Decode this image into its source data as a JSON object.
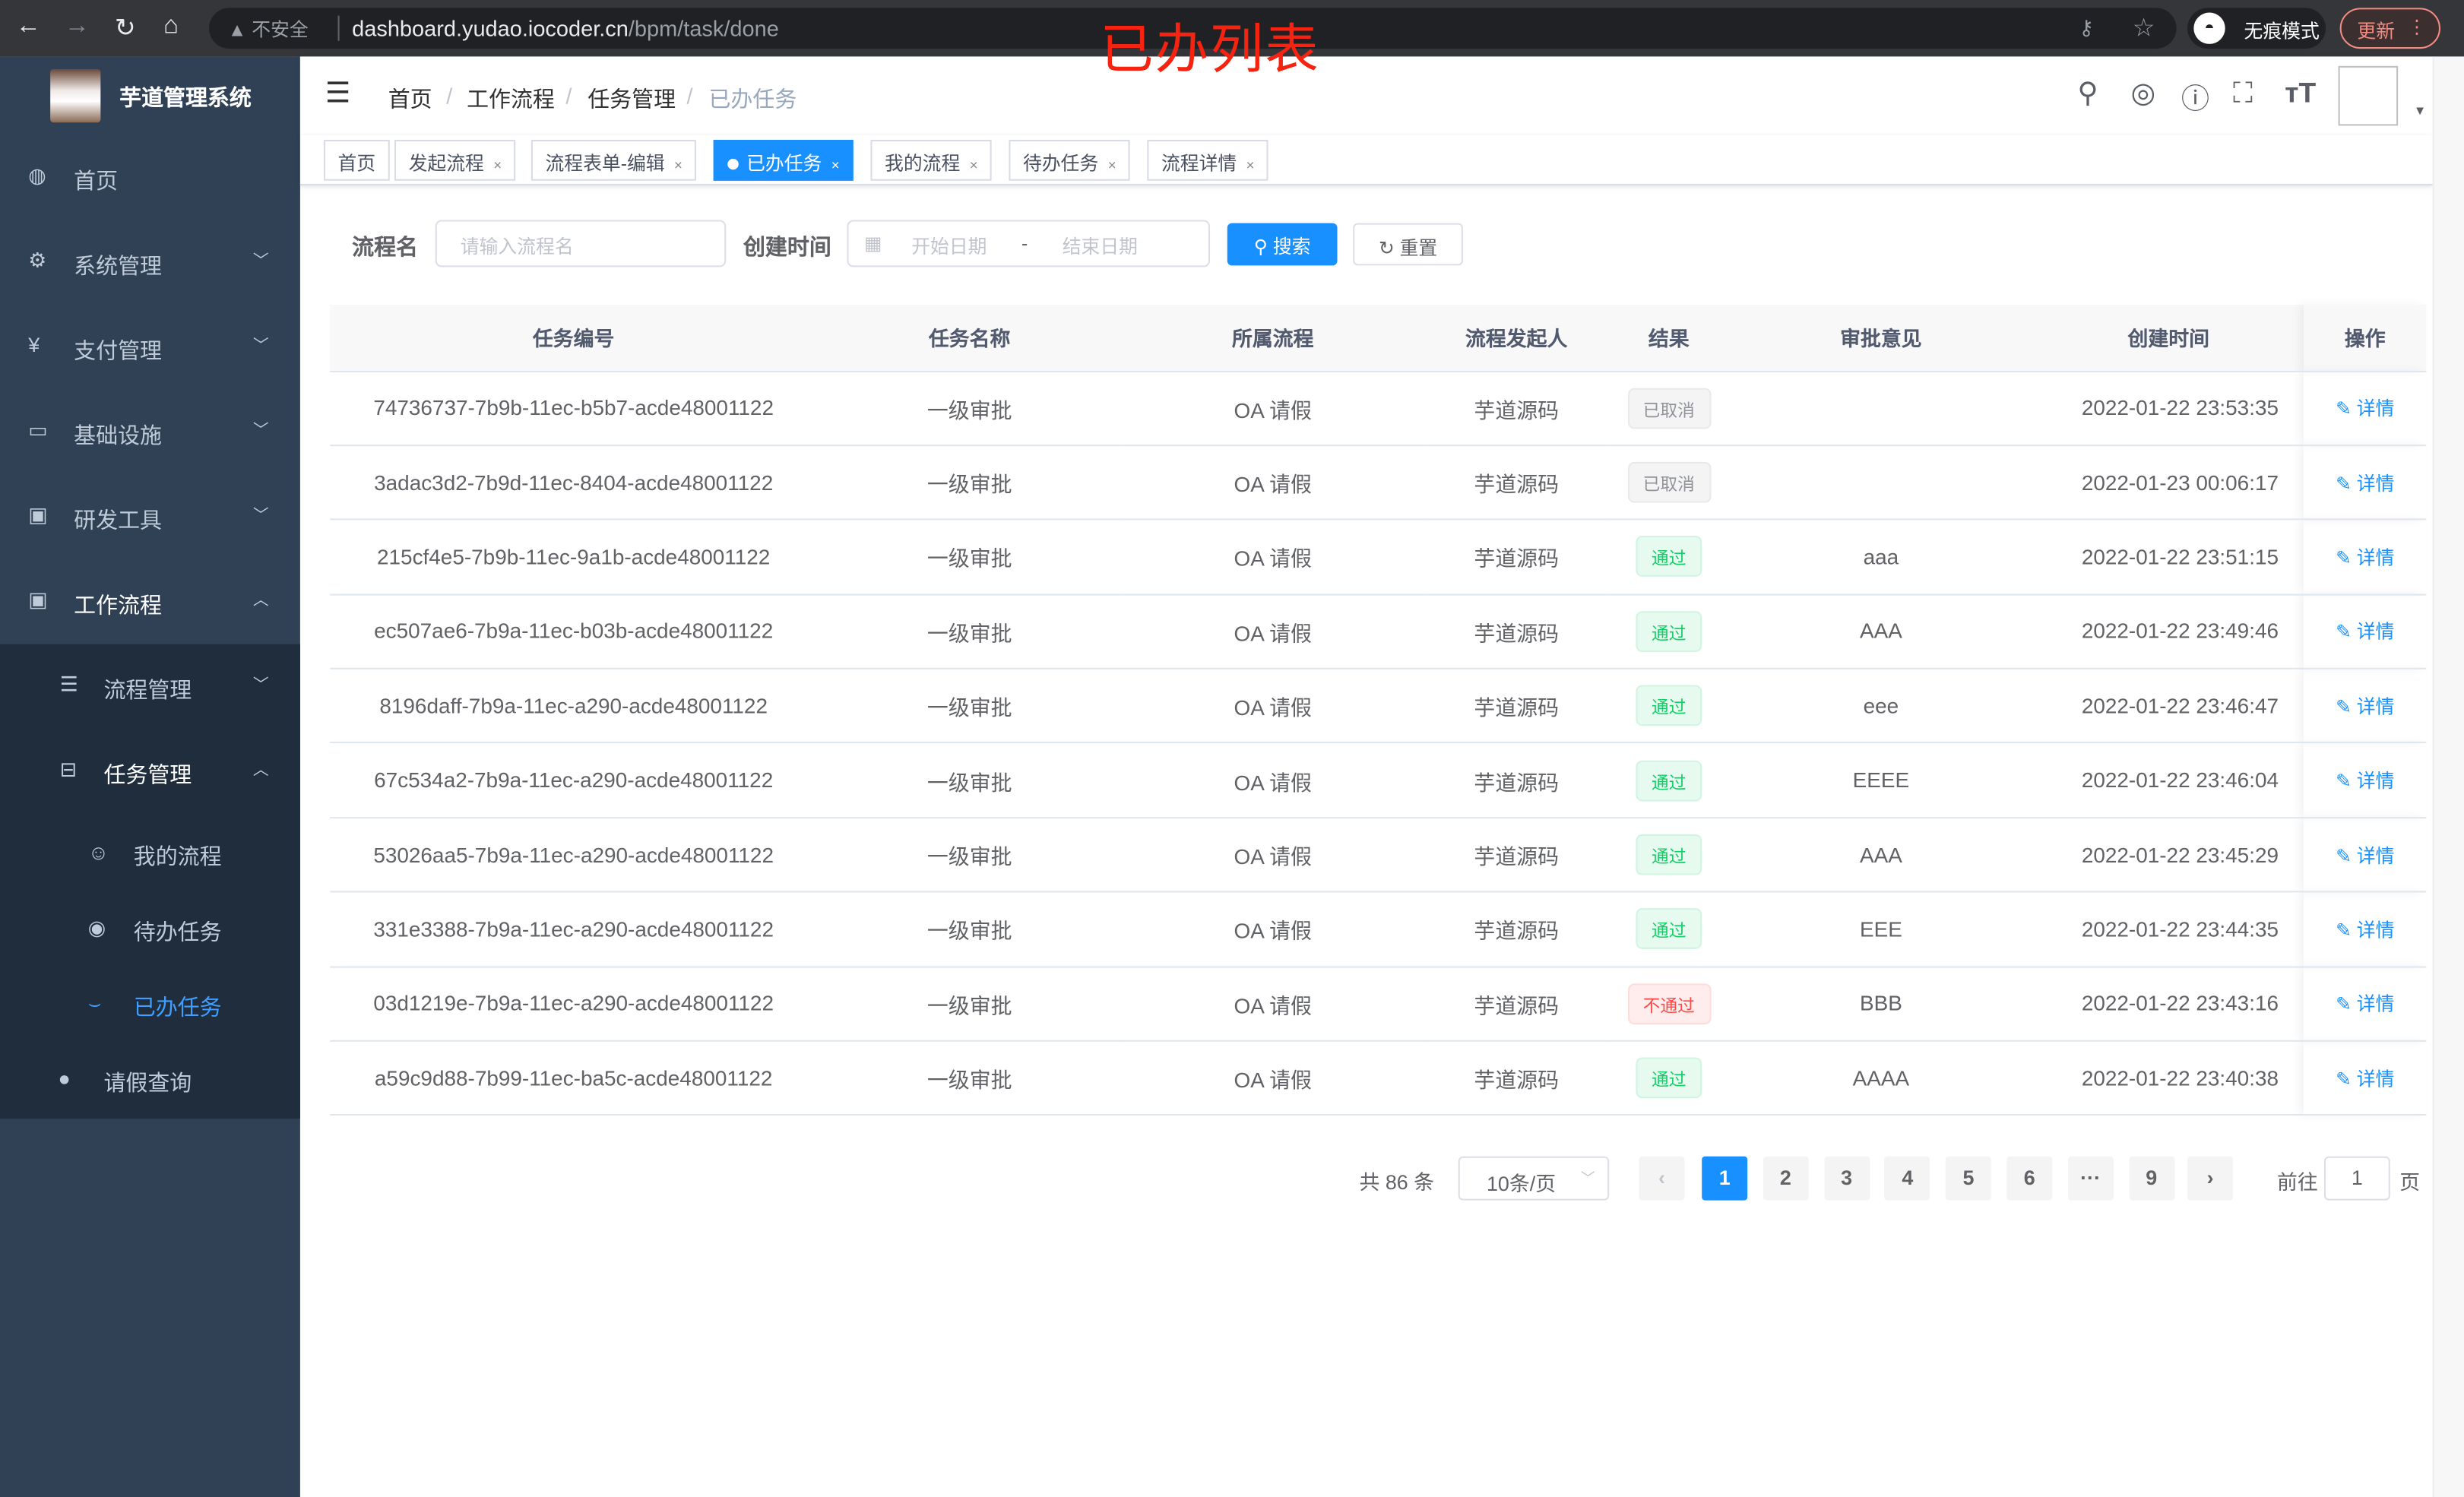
{
  "browser": {
    "security": "不安全",
    "url_host": "dashboard.yudao.iocoder.cn",
    "url_path": "/bpm/task/done",
    "incognito": "无痕模式",
    "update": "更新"
  },
  "annotation": "已办列表",
  "sidebar": {
    "title": "芋道管理系统",
    "items": [
      {
        "label": "首页",
        "icon": "dashboard-icon"
      },
      {
        "label": "系统管理",
        "icon": "gear-icon"
      },
      {
        "label": "支付管理",
        "icon": "yen-icon"
      },
      {
        "label": "基础设施",
        "icon": "monitor-icon"
      },
      {
        "label": "研发工具",
        "icon": "toolbox-icon"
      },
      {
        "label": "工作流程",
        "icon": "toolbox-icon"
      }
    ],
    "sub": [
      {
        "label": "流程管理"
      },
      {
        "label": "任务管理"
      }
    ],
    "task_sub": [
      {
        "label": "我的流程"
      },
      {
        "label": "待办任务"
      },
      {
        "label": "已办任务",
        "active": true
      }
    ],
    "leave": "请假查询"
  },
  "breadcrumb": [
    "首页",
    "工作流程",
    "任务管理",
    "已办任务"
  ],
  "tags": [
    {
      "label": "首页"
    },
    {
      "label": "发起流程"
    },
    {
      "label": "流程表单-编辑"
    },
    {
      "label": "已办任务",
      "active": true
    },
    {
      "label": "我的流程"
    },
    {
      "label": "待办任务"
    },
    {
      "label": "流程详情"
    }
  ],
  "search": {
    "name_label": "流程名",
    "name_placeholder": "请输入流程名",
    "time_label": "创建时间",
    "start_placeholder": "开始日期",
    "range_sep": "-",
    "end_placeholder": "结束日期",
    "search_btn": "搜索",
    "reset_btn": "重置"
  },
  "table": {
    "headers": [
      "任务编号",
      "任务名称",
      "所属流程",
      "流程发起人",
      "结果",
      "审批意见",
      "创建时间",
      "操作"
    ],
    "rows": [
      {
        "id": "74736737-7b9b-11ec-b5b7-acde48001122",
        "name": "一级审批",
        "process": "OA 请假",
        "starter": "芋道源码",
        "result": "已取消",
        "status": "info",
        "comment": "",
        "time": "2022-01-22 23:53:35",
        "action": "详情"
      },
      {
        "id": "3adac3d2-7b9d-11ec-8404-acde48001122",
        "name": "一级审批",
        "process": "OA 请假",
        "starter": "芋道源码",
        "result": "已取消",
        "status": "info",
        "comment": "",
        "time": "2022-01-23 00:06:17",
        "action": "详情"
      },
      {
        "id": "215cf4e5-7b9b-11ec-9a1b-acde48001122",
        "name": "一级审批",
        "process": "OA 请假",
        "starter": "芋道源码",
        "result": "通过",
        "status": "success",
        "comment": "aaa",
        "time": "2022-01-22 23:51:15",
        "action": "详情"
      },
      {
        "id": "ec507ae6-7b9a-11ec-b03b-acde48001122",
        "name": "一级审批",
        "process": "OA 请假",
        "starter": "芋道源码",
        "result": "通过",
        "status": "success",
        "comment": "AAA",
        "time": "2022-01-22 23:49:46",
        "action": "详情"
      },
      {
        "id": "8196daff-7b9a-11ec-a290-acde48001122",
        "name": "一级审批",
        "process": "OA 请假",
        "starter": "芋道源码",
        "result": "通过",
        "status": "success",
        "comment": "eee",
        "time": "2022-01-22 23:46:47",
        "action": "详情"
      },
      {
        "id": "67c534a2-7b9a-11ec-a290-acde48001122",
        "name": "一级审批",
        "process": "OA 请假",
        "starter": "芋道源码",
        "result": "通过",
        "status": "success",
        "comment": "EEEE",
        "time": "2022-01-22 23:46:04",
        "action": "详情"
      },
      {
        "id": "53026aa5-7b9a-11ec-a290-acde48001122",
        "name": "一级审批",
        "process": "OA 请假",
        "starter": "芋道源码",
        "result": "通过",
        "status": "success",
        "comment": "AAA",
        "time": "2022-01-22 23:45:29",
        "action": "详情"
      },
      {
        "id": "331e3388-7b9a-11ec-a290-acde48001122",
        "name": "一级审批",
        "process": "OA 请假",
        "starter": "芋道源码",
        "result": "通过",
        "status": "success",
        "comment": "EEE",
        "time": "2022-01-22 23:44:35",
        "action": "详情"
      },
      {
        "id": "03d1219e-7b9a-11ec-a290-acde48001122",
        "name": "一级审批",
        "process": "OA 请假",
        "starter": "芋道源码",
        "result": "不通过",
        "status": "danger",
        "comment": "BBB",
        "time": "2022-01-22 23:43:16",
        "action": "详情"
      },
      {
        "id": "a59c9d88-7b99-11ec-ba5c-acde48001122",
        "name": "一级审批",
        "process": "OA 请假",
        "starter": "芋道源码",
        "result": "通过",
        "status": "success",
        "comment": "AAAA",
        "time": "2022-01-22 23:40:38",
        "action": "详情"
      }
    ]
  },
  "pagination": {
    "total": "共 86 条",
    "page_size": "10条/页",
    "pages": [
      "1",
      "2",
      "3",
      "4",
      "5",
      "6",
      "···",
      "9"
    ],
    "current": "1",
    "goto_label": "前往",
    "goto_value": "1",
    "goto_suffix": "页"
  },
  "colors": {
    "primary": "#1890ff",
    "sidebar": "#304156",
    "sidebar_sub": "#1f2d3d",
    "annotation": "#f5230f"
  }
}
